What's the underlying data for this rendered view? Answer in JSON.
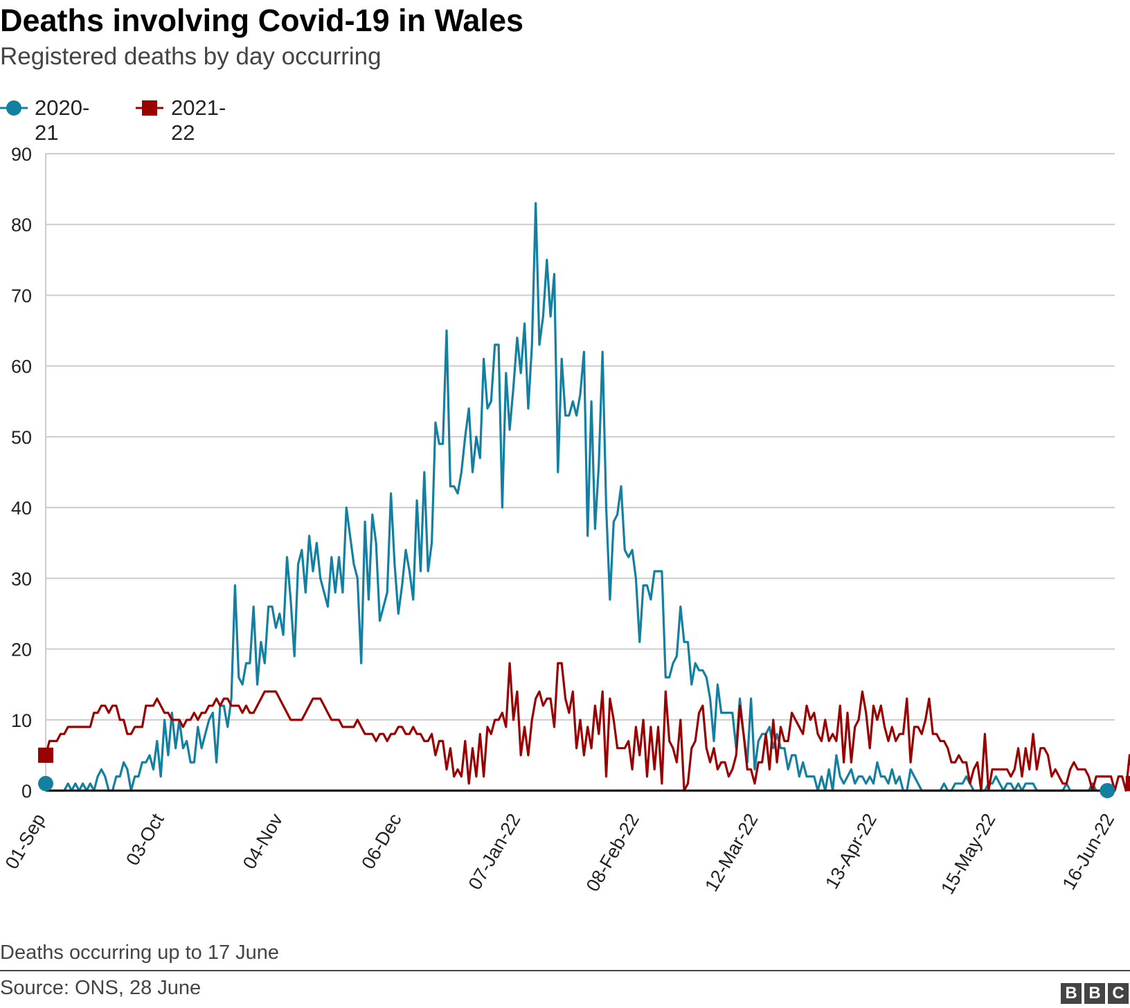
{
  "header": {
    "title": "Deaths involving Covid-19 in Wales",
    "subtitle": "Registered deaths by day occurring"
  },
  "footer": {
    "note": "Deaths occurring up to 17 June",
    "source": "Source: ONS, 28 June",
    "logo": [
      "B",
      "B",
      "C"
    ]
  },
  "colors": {
    "series_2020_21": "#1380a1",
    "series_2021_22": "#990000",
    "grid": "#cccccc",
    "axis": "#000000"
  },
  "chart_data": {
    "type": "line",
    "title": "Deaths involving Covid-19 in Wales",
    "subtitle": "Registered deaths by day occurring",
    "ylim": [
      0,
      90
    ],
    "yticks": [
      0,
      10,
      20,
      30,
      40,
      50,
      60,
      70,
      80,
      90
    ],
    "xlim": [
      0,
      288
    ],
    "xticks": [
      {
        "day": 0,
        "label": "01-Sep"
      },
      {
        "day": 32,
        "label": "03-Oct"
      },
      {
        "day": 64,
        "label": "04-Nov"
      },
      {
        "day": 96,
        "label": "06-Dec"
      },
      {
        "day": 128,
        "label": "07-Jan-22"
      },
      {
        "day": 160,
        "label": "08-Feb-22"
      },
      {
        "day": 192,
        "label": "12-Mar-22"
      },
      {
        "day": 224,
        "label": "13-Apr-22"
      },
      {
        "day": 256,
        "label": "15-May-22"
      },
      {
        "day": 288,
        "label": "16-Jun-22"
      }
    ],
    "grid": true,
    "legend_position": "top-left",
    "series": [
      {
        "name": "2020-21",
        "marker": "circle",
        "color": "#1380a1",
        "values": [
          1,
          0,
          0,
          0,
          0,
          0,
          1,
          0,
          1,
          0,
          1,
          0,
          1,
          0,
          2,
          3,
          2,
          0,
          0,
          2,
          2,
          4,
          3,
          0,
          2,
          2,
          4,
          4,
          5,
          3,
          7,
          2,
          10,
          5,
          11,
          6,
          10,
          6,
          7,
          4,
          4,
          9,
          6,
          8,
          10,
          11,
          4,
          12,
          12,
          9,
          13,
          29,
          16,
          15,
          18,
          18,
          26,
          15,
          21,
          18,
          26,
          26,
          23,
          25,
          22,
          33,
          27,
          19,
          32,
          34,
          28,
          36,
          31,
          35,
          30,
          28,
          26,
          33,
          28,
          33,
          28,
          40,
          36,
          32,
          30,
          18,
          38,
          27,
          39,
          35,
          24,
          26,
          28,
          42,
          32,
          25,
          29,
          34,
          31,
          27,
          41,
          31,
          45,
          31,
          35,
          52,
          49,
          49,
          65,
          43,
          43,
          42,
          45,
          50,
          54,
          45,
          50,
          47,
          61,
          54,
          55,
          63,
          63,
          40,
          59,
          51,
          57,
          64,
          59,
          66,
          54,
          63,
          83,
          63,
          67,
          75,
          67,
          73,
          45,
          61,
          53,
          53,
          55,
          53,
          56,
          62,
          36,
          55,
          37,
          46,
          62,
          40,
          27,
          38,
          39,
          43,
          34,
          33,
          34,
          30,
          21,
          29,
          29,
          27,
          31,
          31,
          31,
          16,
          16,
          18,
          19,
          26,
          21,
          21,
          15,
          18,
          17,
          17,
          16,
          13,
          7,
          15,
          11,
          11,
          11,
          11,
          6,
          13,
          8,
          4,
          13,
          3,
          7,
          8,
          8,
          9,
          6,
          8,
          6,
          6,
          3,
          5,
          5,
          2,
          4,
          2,
          2,
          2,
          0,
          2,
          0,
          3,
          0,
          5,
          2,
          1,
          2,
          3,
          1,
          2,
          2,
          1,
          2,
          1,
          4,
          2,
          2,
          1,
          3,
          1,
          2,
          0,
          0,
          3,
          2,
          1,
          0,
          0,
          0,
          0,
          0,
          0,
          1,
          0,
          0,
          1,
          1,
          1,
          2,
          1,
          0,
          0,
          0,
          0,
          1,
          1,
          2,
          1,
          0,
          1,
          1,
          0,
          1,
          0,
          1,
          1,
          1,
          0,
          0,
          0,
          0,
          0,
          0,
          0,
          0,
          1,
          0,
          0,
          0,
          0,
          0,
          0,
          1,
          0,
          0,
          0,
          0
        ]
      },
      {
        "name": "2021-22",
        "marker": "square",
        "color": "#990000",
        "values": [
          5,
          7,
          7,
          7,
          8,
          8,
          9,
          9,
          9,
          9,
          9,
          9,
          9,
          11,
          11,
          12,
          12,
          11,
          12,
          12,
          10,
          10,
          8,
          8,
          9,
          9,
          9,
          12,
          12,
          12,
          13,
          12,
          11,
          11,
          10,
          10,
          10,
          9,
          10,
          10,
          11,
          10,
          11,
          11,
          12,
          12,
          13,
          12,
          13,
          13,
          12,
          12,
          12,
          11,
          12,
          11,
          11,
          12,
          13,
          14,
          14,
          14,
          14,
          13,
          12,
          11,
          10,
          10,
          10,
          10,
          11,
          12,
          13,
          13,
          13,
          12,
          11,
          10,
          10,
          10,
          9,
          9,
          9,
          9,
          10,
          9,
          8,
          8,
          8,
          7,
          8,
          8,
          7,
          8,
          8,
          9,
          9,
          8,
          8,
          9,
          8,
          8,
          7,
          7,
          8,
          5,
          7,
          7,
          3,
          6,
          2,
          3,
          2,
          7,
          1,
          6,
          2,
          8,
          2,
          9,
          8,
          10,
          10,
          11,
          9,
          18,
          10,
          14,
          5,
          9,
          5,
          10,
          13,
          14,
          12,
          13,
          13,
          9,
          18,
          18,
          13,
          11,
          14,
          6,
          10,
          5,
          9,
          6,
          12,
          8,
          14,
          2,
          13,
          10,
          6,
          6,
          6,
          7,
          3,
          9,
          5,
          10,
          2,
          9,
          3,
          9,
          1,
          14,
          7,
          6,
          4,
          10,
          0,
          1,
          6,
          7,
          11,
          12,
          6,
          4,
          6,
          3,
          4,
          4,
          2,
          3,
          5,
          12,
          8,
          3,
          3,
          1,
          4,
          4,
          8,
          3,
          10,
          4,
          9,
          7,
          7,
          11,
          10,
          9,
          8,
          12,
          10,
          11,
          8,
          7,
          10,
          7,
          8,
          7,
          12,
          4,
          11,
          4,
          9,
          10,
          14,
          11,
          6,
          12,
          10,
          12,
          9,
          7,
          9,
          7,
          8,
          8,
          13,
          4,
          9,
          9,
          8,
          10,
          13,
          8,
          8,
          7,
          7,
          6,
          4,
          4,
          5,
          4,
          4,
          1,
          3,
          4,
          0,
          8,
          0,
          3,
          3,
          3,
          3,
          3,
          2,
          3,
          6,
          2,
          6,
          3,
          8,
          3,
          6,
          6,
          5,
          2,
          3,
          2,
          1,
          1,
          3,
          4,
          3,
          3,
          3,
          2,
          0,
          2,
          2,
          2,
          2,
          2,
          0,
          2,
          2,
          0,
          5,
          1
        ]
      }
    ]
  }
}
